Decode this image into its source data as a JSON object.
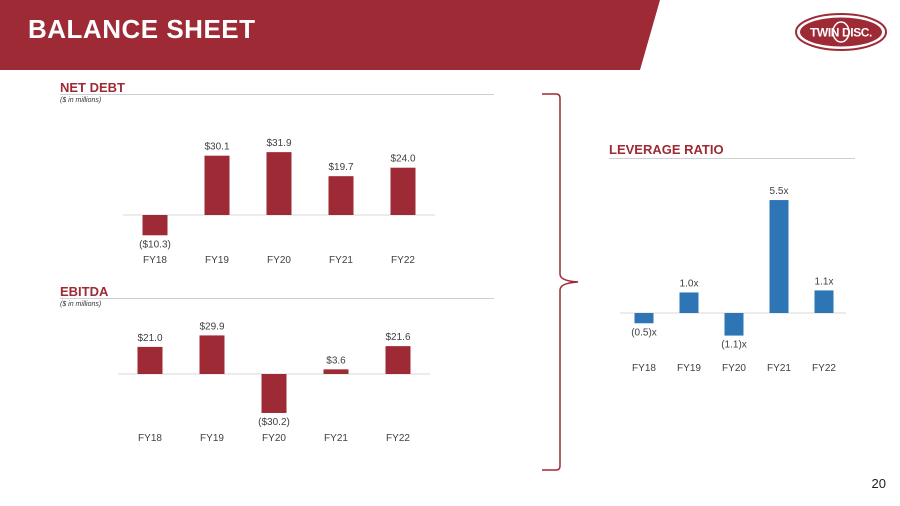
{
  "header": {
    "title": "BALANCE SHEET"
  },
  "logo": {
    "text": "TWIN DISC."
  },
  "sections": {
    "net_debt": {
      "title": "NET DEBT",
      "subtitle": "($ in millions)"
    },
    "ebitda": {
      "title": "EBITDA",
      "subtitle": "($ in millions)"
    },
    "leverage": {
      "title": "LEVERAGE RATIO"
    }
  },
  "page_number": "20",
  "colors": {
    "brand_red": "#9e2a36",
    "bar_blue": "#2e75b6"
  },
  "chart_data": [
    {
      "type": "bar",
      "title": "NET DEBT",
      "subtitle": "($ in millions)",
      "categories": [
        "FY18",
        "FY19",
        "FY20",
        "FY21",
        "FY22"
      ],
      "values": [
        -10.3,
        30.1,
        31.9,
        19.7,
        24.0
      ],
      "labels": [
        "($10.3)",
        "$30.1",
        "$31.9",
        "$19.7",
        "$24.0"
      ],
      "ylim": [
        -12,
        34
      ]
    },
    {
      "type": "bar",
      "title": "EBITDA",
      "subtitle": "($ in millions)",
      "categories": [
        "FY18",
        "FY19",
        "FY20",
        "FY21",
        "FY22"
      ],
      "values": [
        21.0,
        29.9,
        -30.2,
        3.6,
        21.6
      ],
      "labels": [
        "$21.0",
        "$29.9",
        "($30.2)",
        "$3.6",
        "$21.6"
      ],
      "ylim": [
        -31,
        31
      ]
    },
    {
      "type": "bar",
      "title": "LEVERAGE RATIO",
      "categories": [
        "FY18",
        "FY19",
        "FY20",
        "FY21",
        "FY22"
      ],
      "values": [
        -0.5,
        1.0,
        -1.1,
        5.5,
        1.1
      ],
      "labels": [
        "(0.5)x",
        "1.0x",
        "(1.1)x",
        "5.5x",
        "1.1x"
      ],
      "ylim": [
        -1.2,
        5.6
      ]
    }
  ]
}
